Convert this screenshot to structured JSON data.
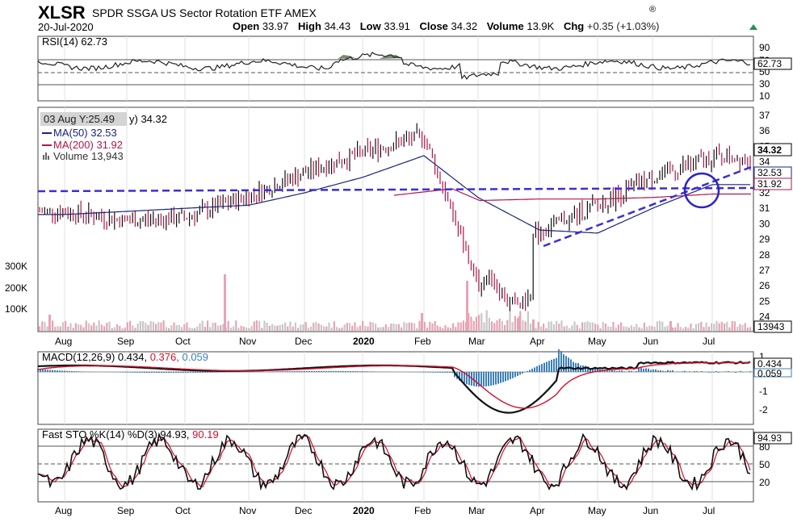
{
  "header": {
    "symbol": "XLSR",
    "name": "SPDR SSGA US Sector Rotation ETF",
    "exchange": "AMEX",
    "date": "20-Jul-2020",
    "open_label": "Open",
    "open": "33.97",
    "high_label": "High",
    "high": "34.43",
    "low_label": "Low",
    "low": "33.91",
    "close_label": "Close",
    "close": "34.32",
    "volume_label": "Volume",
    "volume": "13.9K",
    "chg_label": "Chg",
    "chg": "+0.35 (+1.03%)",
    "copyright": "®",
    "up_color": "#2e8b57"
  },
  "rsi": {
    "legend": "RSI(14) 62.73",
    "value_tag": "62.73",
    "ticks": [
      "90",
      "70",
      "50",
      "30",
      "10"
    ]
  },
  "price": {
    "tooltip": "03 Aug Y:25.49",
    "legend_title": "y) 34.32",
    "ma50_label": "MA(50) 32.53",
    "ma200_label": "MA(200) 31.92",
    "volume_label": "Volume 13,943",
    "close_tag": "34.32",
    "ma50_tag": "32.53",
    "ma200_tag": "31.92",
    "volume_tag": "13943",
    "y_ticks": [
      "37",
      "36",
      "35",
      "34",
      "33",
      "32",
      "31",
      "30",
      "29",
      "28",
      "27",
      "26",
      "25",
      "24"
    ],
    "vol_ticks": [
      "300K",
      "200K",
      "100K"
    ],
    "year_label": "2020"
  },
  "macd": {
    "legend_a": "MACD(12,26,9) 0.434,",
    "legend_b": "0.376,",
    "legend_c": "0.059",
    "tag_macd": "0.434",
    "tag_signal": "0.059",
    "ticks": [
      "1",
      "0",
      "-1",
      "-2"
    ]
  },
  "sto": {
    "legend_a": "Fast STO %K(14) %D(3) 94.93,",
    "legend_b": "90.19",
    "tag": "94.93",
    "ticks": [
      "80",
      "50",
      "20"
    ]
  },
  "x_axis": {
    "months": [
      "Aug",
      "Sep",
      "Oct",
      "Nov",
      "Dec",
      "2020",
      "Feb",
      "Mar",
      "Apr",
      "May",
      "Jun",
      "Jul"
    ]
  },
  "colors": {
    "ma50": "#1a237e",
    "ma200": "#b0174a",
    "trend": "#3b2fd6",
    "macd_hist": "#3d7fb8",
    "signal": "#d0102a",
    "volume_up": "#c8c8c8",
    "volume_down": "#e8a4b4"
  },
  "chart_data": {
    "type": "line",
    "title": "XLSR SPDR SSGA US Sector Rotation ETF AMEX",
    "x": [
      "Aug",
      "Sep",
      "Oct",
      "Nov",
      "Dec",
      "2020",
      "Feb",
      "Mar",
      "Apr",
      "May",
      "Jun",
      "Jul"
    ],
    "series": [
      {
        "name": "Close",
        "values": [
          30.8,
          30.2,
          30.4,
          31.8,
          33.3,
          34.6,
          35.7,
          26.0,
          29.5,
          31.2,
          33.0,
          34.32
        ]
      },
      {
        "name": "MA(50)",
        "values": [
          30.6,
          30.8,
          31.0,
          31.2,
          32.0,
          33.0,
          34.4,
          31.7,
          29.6,
          29.4,
          31.0,
          32.53
        ]
      },
      {
        "name": "MA(200)",
        "values": [
          null,
          null,
          null,
          null,
          null,
          null,
          null,
          31.5,
          31.6,
          31.6,
          31.7,
          31.92
        ]
      }
    ],
    "ylim": [
      24,
      37
    ],
    "xlabel": "",
    "ylabel": ""
  }
}
